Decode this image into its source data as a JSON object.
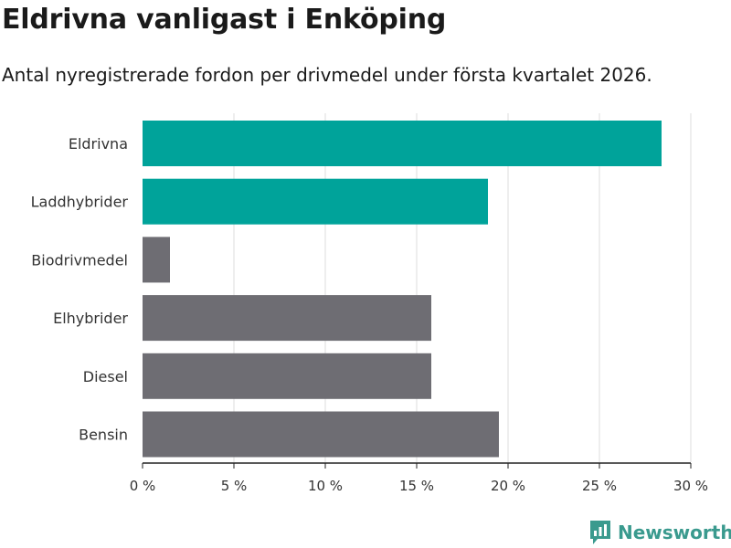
{
  "chart_data": {
    "type": "bar",
    "orientation": "horizontal",
    "title": "Eldrivna vanligast i Enköping",
    "subtitle": "Antal nyregistrerade fordon per drivmedel under första kvartalet 2026.",
    "xlabel": "",
    "ylabel": "",
    "categories": [
      "Eldrivna",
      "Laddhybrider",
      "Biodrivmedel",
      "Elhybrider",
      "Diesel",
      "Bensin"
    ],
    "values": [
      28.4,
      18.9,
      1.5,
      15.8,
      15.8,
      19.5
    ],
    "colors": [
      "#00a39a",
      "#00a39a",
      "#6e6d73",
      "#6e6d73",
      "#6e6d73",
      "#6e6d73"
    ],
    "xlim": [
      0,
      30
    ],
    "ticks": [
      0,
      5,
      10,
      15,
      20,
      25,
      30
    ],
    "tick_labels": [
      "0 %",
      "5 %",
      "10 %",
      "15 %",
      "20 %",
      "25 %",
      "30 %"
    ],
    "grid": true
  },
  "brand": {
    "name": "Newsworthy",
    "icon": "newsworthy-logo-icon",
    "color": "#3a9a8e"
  }
}
